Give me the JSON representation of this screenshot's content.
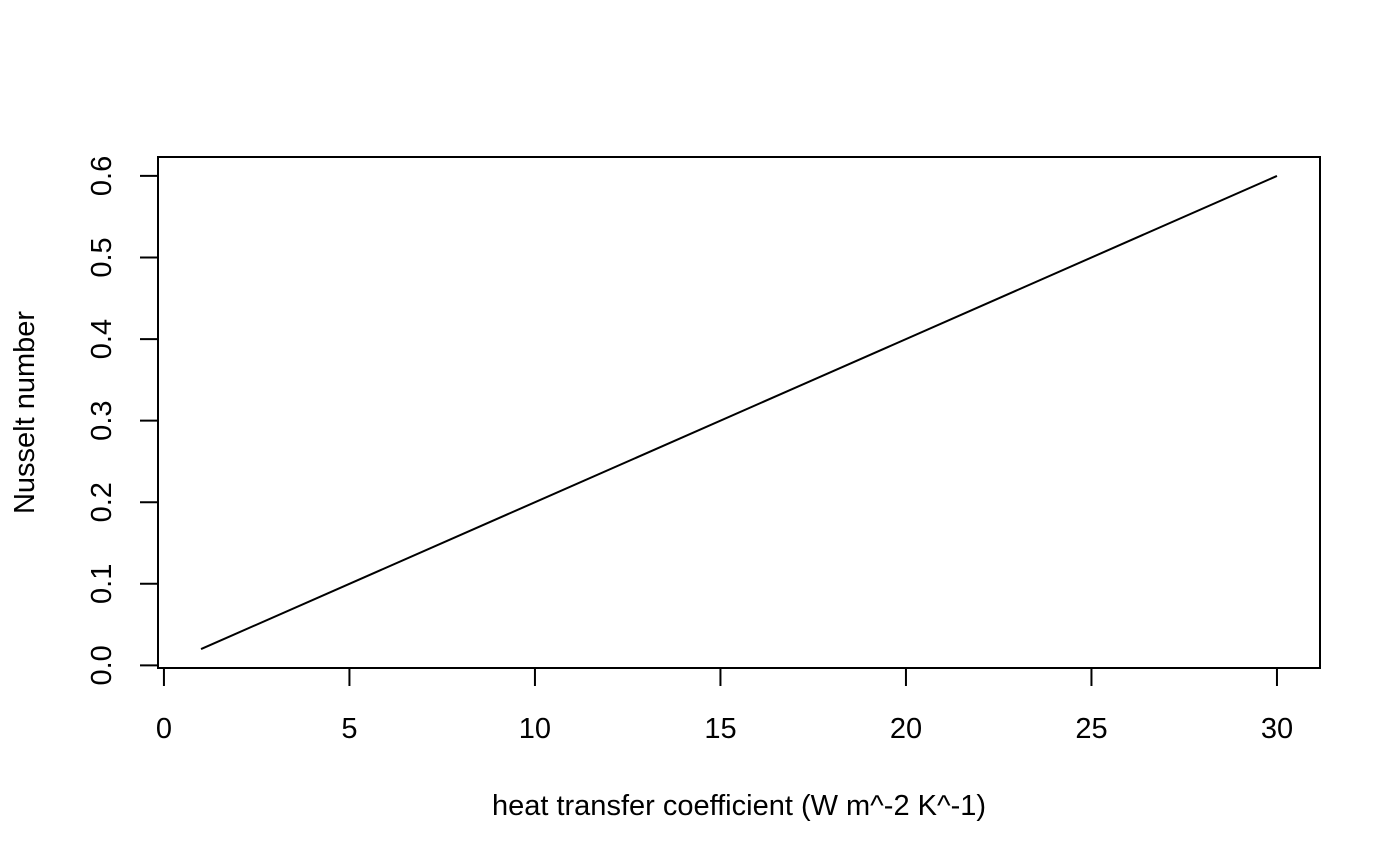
{
  "chart_data": {
    "type": "line",
    "title": "",
    "xlabel": "heat transfer coefficient (W m^-2 K^-1)",
    "ylabel": "Nusselt number",
    "xlim": [
      -0.16,
      31.16
    ],
    "ylim": [
      -0.0032,
      0.6232
    ],
    "x_ticks": [
      0,
      5,
      10,
      15,
      20,
      25,
      30
    ],
    "x_tick_labels": [
      "0",
      "5",
      "10",
      "15",
      "20",
      "25",
      "30"
    ],
    "y_ticks": [
      0.0,
      0.1,
      0.2,
      0.3,
      0.4,
      0.5,
      0.6
    ],
    "y_tick_labels": [
      "0.0",
      "0.1",
      "0.2",
      "0.3",
      "0.4",
      "0.5",
      "0.6"
    ],
    "grid": false,
    "legend": "none",
    "line_color": "#000000",
    "series": [
      {
        "x": [
          1,
          30
        ],
        "y": [
          0.02,
          0.6
        ]
      }
    ]
  }
}
